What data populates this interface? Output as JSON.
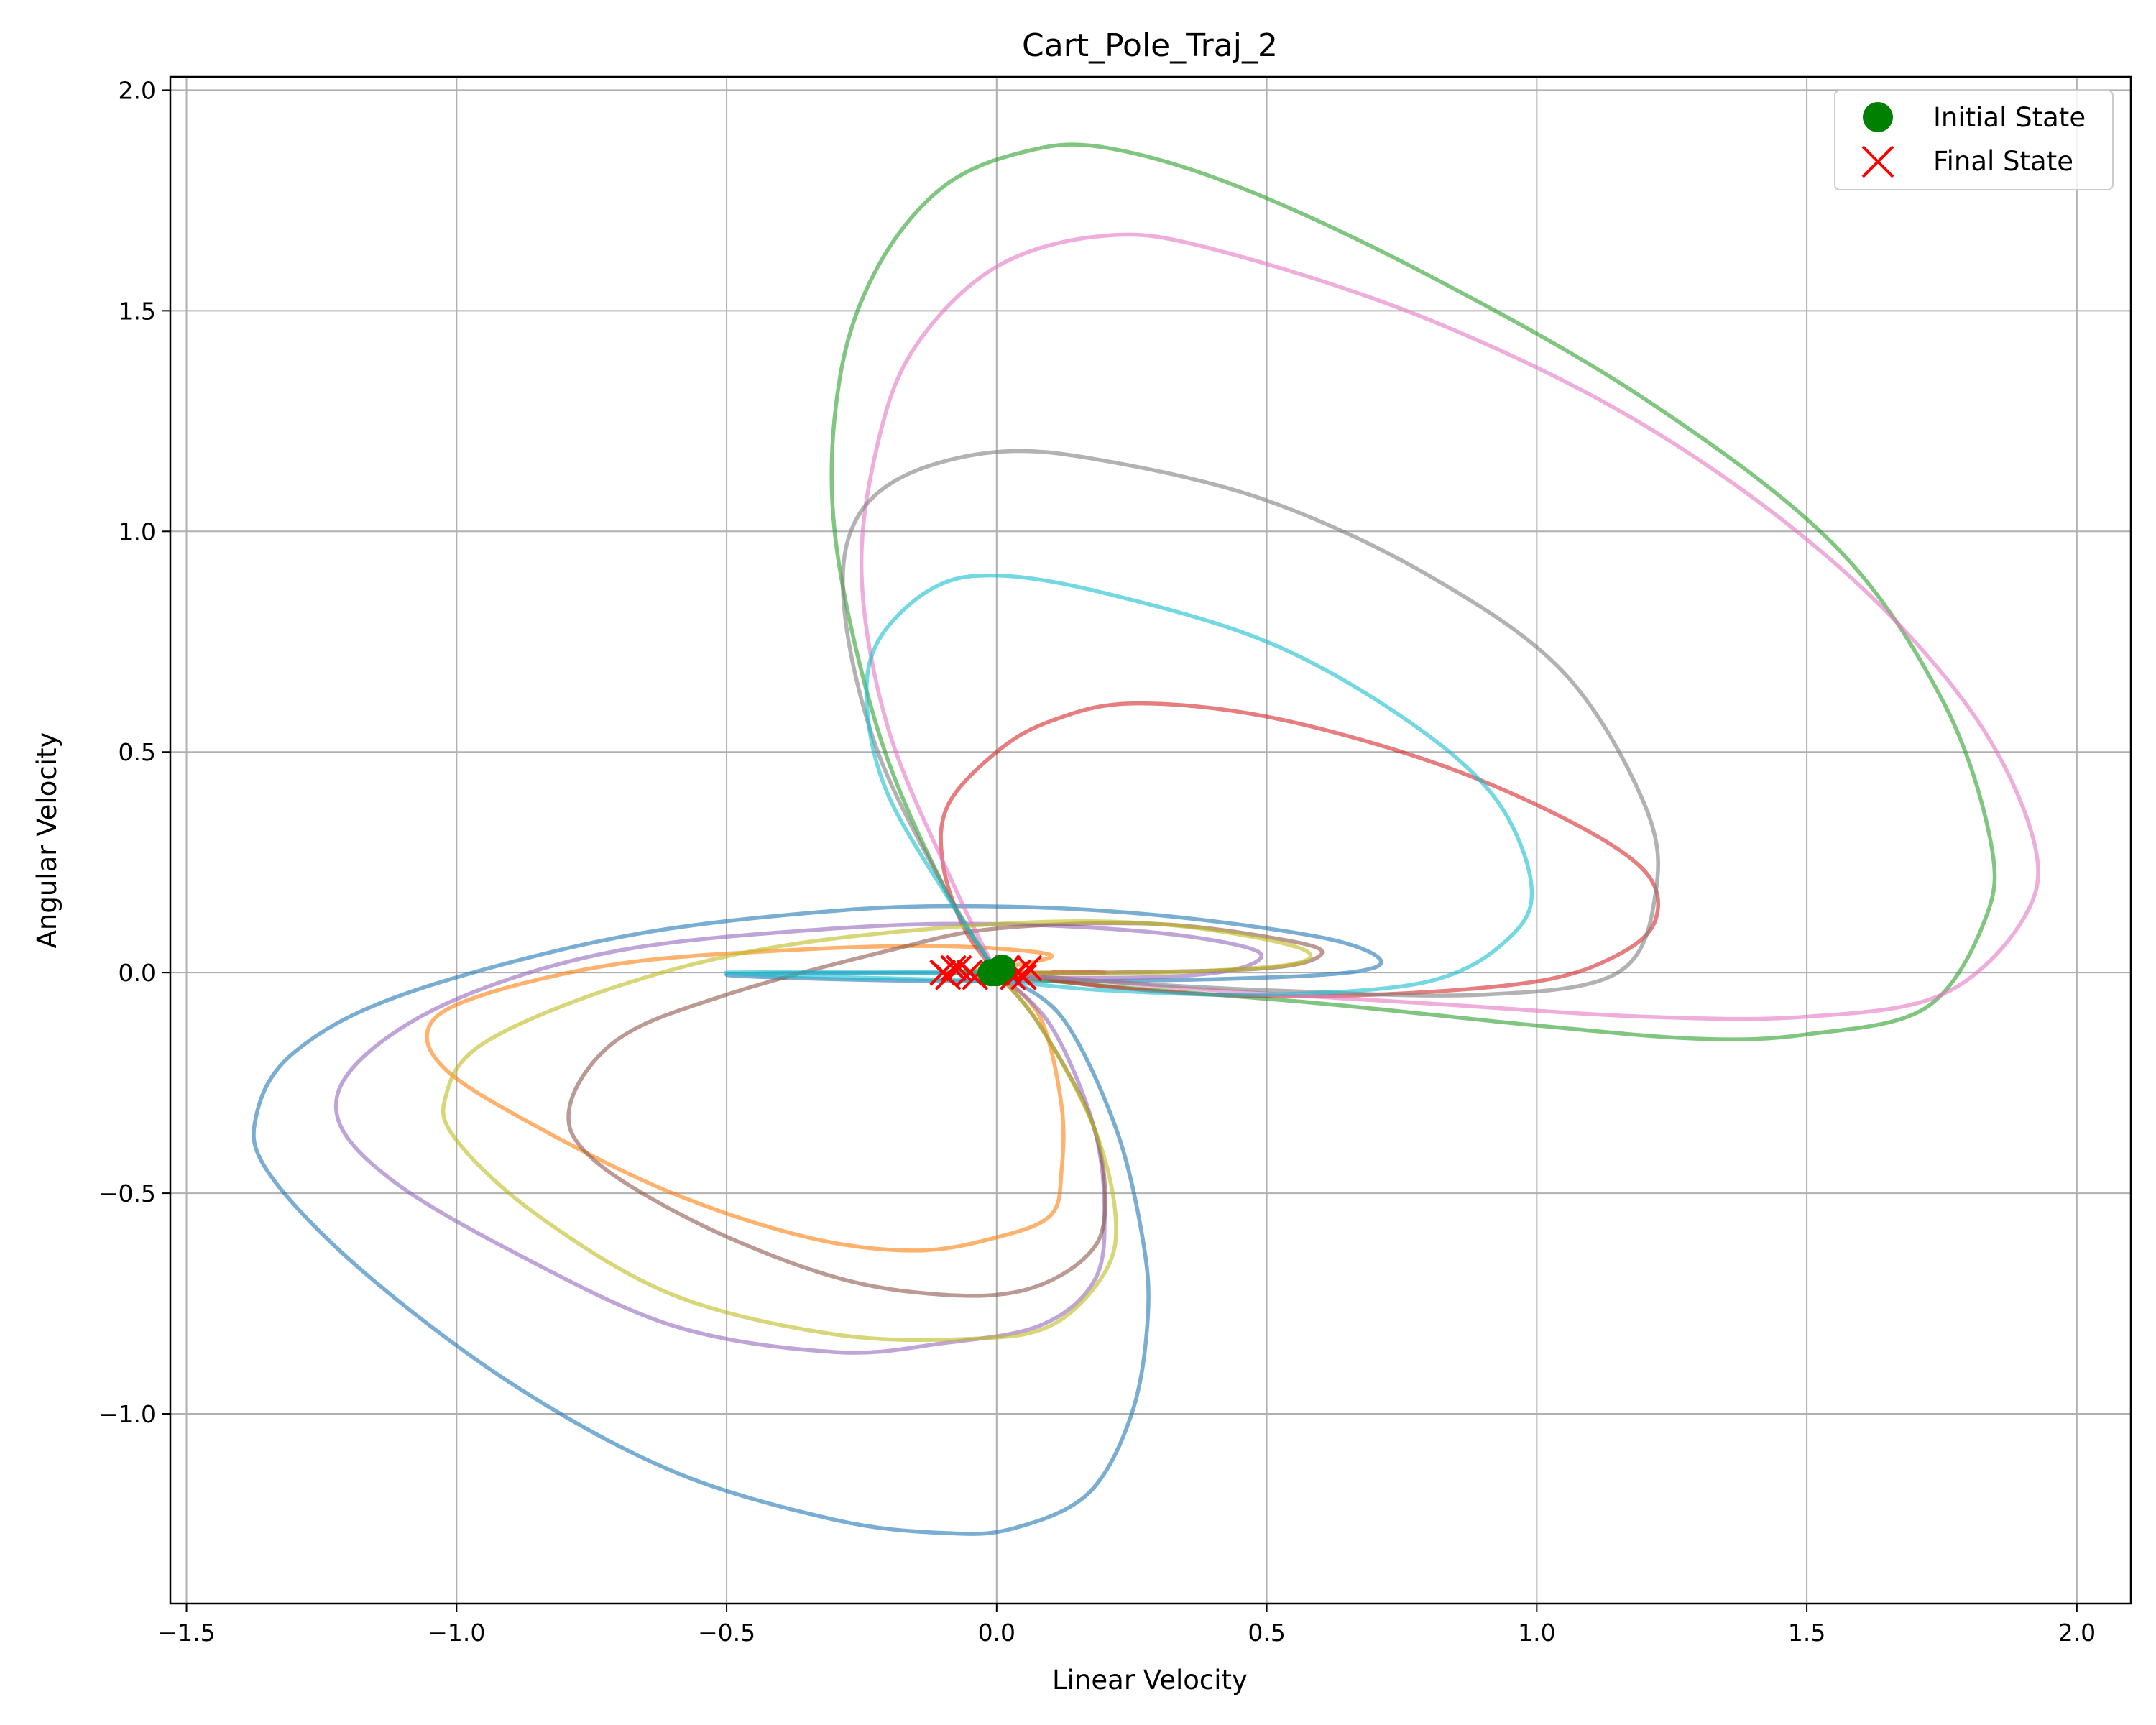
{
  "chart_data": {
    "type": "line",
    "title": "Cart_Pole_Traj_2",
    "xlabel": "Linear Velocity",
    "ylabel": "Angular Velocity",
    "xlim": [
      -1.53,
      2.1
    ],
    "ylim": [
      -1.43,
      2.03
    ],
    "x_ticks": [
      -1.5,
      -1.0,
      -0.5,
      0.0,
      0.5,
      1.0,
      1.5,
      2.0
    ],
    "y_ticks": [
      -1.0,
      -0.5,
      0.0,
      0.5,
      1.0,
      1.5,
      2.0
    ],
    "x_tick_labels": [
      "−1.5",
      "−1.0",
      "−0.5",
      "0.0",
      "0.5",
      "1.0",
      "1.5",
      "2.0"
    ],
    "y_tick_labels": [
      "−1.0",
      "−0.5",
      "0.0",
      "0.5",
      "1.0",
      "1.5",
      "2.0"
    ],
    "grid": true,
    "legend_position": "top-right",
    "legend": [
      {
        "label": "Initial State",
        "marker": "circle",
        "color": "#008000"
      },
      {
        "label": "Final State",
        "marker": "x",
        "color": "#ff0000"
      }
    ],
    "series": [
      {
        "color": "#1f77b4",
        "points": [
          [
            0.0,
            0.0
          ],
          [
            0.12,
            -0.1
          ],
          [
            0.22,
            -0.35
          ],
          [
            0.27,
            -0.6
          ],
          [
            0.28,
            -0.78
          ],
          [
            0.25,
            -1.0
          ],
          [
            0.17,
            -1.18
          ],
          [
            0.03,
            -1.26
          ],
          [
            -0.1,
            -1.27
          ],
          [
            -0.3,
            -1.24
          ],
          [
            -0.6,
            -1.13
          ],
          [
            -0.9,
            -0.93
          ],
          [
            -1.18,
            -0.67
          ],
          [
            -1.35,
            -0.45
          ],
          [
            -1.37,
            -0.32
          ],
          [
            -1.3,
            -0.18
          ],
          [
            -1.1,
            -0.05
          ],
          [
            -0.7,
            0.08
          ],
          [
            -0.3,
            0.14
          ],
          [
            0.0,
            0.15
          ],
          [
            0.3,
            0.13
          ],
          [
            0.6,
            0.08
          ],
          [
            0.71,
            0.03
          ],
          [
            0.65,
            0.0
          ],
          [
            0.4,
            -0.015
          ],
          [
            0.0,
            -0.02
          ],
          [
            -0.3,
            -0.015
          ],
          [
            -0.5,
            -0.005
          ],
          [
            -0.3,
            0.0
          ],
          [
            0.0,
            0.0
          ]
        ]
      },
      {
        "color": "#ff7f0e",
        "points": [
          [
            0.0,
            0.0
          ],
          [
            0.08,
            -0.1
          ],
          [
            0.12,
            -0.3
          ],
          [
            0.12,
            -0.45
          ],
          [
            0.1,
            -0.55
          ],
          [
            0.0,
            -0.6
          ],
          [
            -0.15,
            -0.63
          ],
          [
            -0.35,
            -0.6
          ],
          [
            -0.6,
            -0.5
          ],
          [
            -0.85,
            -0.35
          ],
          [
            -1.02,
            -0.22
          ],
          [
            -1.05,
            -0.12
          ],
          [
            -0.95,
            -0.05
          ],
          [
            -0.7,
            0.02
          ],
          [
            -0.4,
            0.05
          ],
          [
            -0.1,
            0.06
          ],
          [
            0.1,
            0.04
          ],
          [
            0.0,
            0.01
          ],
          [
            -0.1,
            0.0
          ],
          [
            -0.05,
            0.0
          ]
        ]
      },
      {
        "color": "#2ca02c",
        "points": [
          [
            0.0,
            0.0
          ],
          [
            -0.1,
            0.2
          ],
          [
            -0.22,
            0.55
          ],
          [
            -0.3,
            1.0
          ],
          [
            -0.29,
            1.35
          ],
          [
            -0.22,
            1.6
          ],
          [
            -0.1,
            1.78
          ],
          [
            0.05,
            1.86
          ],
          [
            0.2,
            1.87
          ],
          [
            0.45,
            1.78
          ],
          [
            0.8,
            1.58
          ],
          [
            1.2,
            1.3
          ],
          [
            1.55,
            0.97
          ],
          [
            1.75,
            0.62
          ],
          [
            1.84,
            0.3
          ],
          [
            1.83,
            0.12
          ],
          [
            1.72,
            -0.08
          ],
          [
            1.5,
            -0.14
          ],
          [
            1.3,
            -0.15
          ],
          [
            1.0,
            -0.12
          ],
          [
            0.6,
            -0.07
          ],
          [
            0.2,
            -0.03
          ],
          [
            -0.05,
            0.0
          ],
          [
            0.0,
            0.0
          ]
        ]
      },
      {
        "color": "#d62728",
        "points": [
          [
            0.0,
            0.0
          ],
          [
            -0.06,
            0.1
          ],
          [
            -0.1,
            0.25
          ],
          [
            -0.09,
            0.38
          ],
          [
            0.0,
            0.5
          ],
          [
            0.1,
            0.57
          ],
          [
            0.25,
            0.61
          ],
          [
            0.5,
            0.58
          ],
          [
            0.8,
            0.48
          ],
          [
            1.05,
            0.35
          ],
          [
            1.2,
            0.23
          ],
          [
            1.22,
            0.12
          ],
          [
            1.15,
            0.04
          ],
          [
            1.0,
            -0.02
          ],
          [
            0.7,
            -0.05
          ],
          [
            0.4,
            -0.05
          ],
          [
            0.12,
            -0.02
          ],
          [
            0.1,
            0.0
          ],
          [
            0.2,
            0.0
          ],
          [
            0.05,
            0.0
          ]
        ]
      },
      {
        "color": "#9467bd",
        "points": [
          [
            0.0,
            0.0
          ],
          [
            0.1,
            -0.12
          ],
          [
            0.18,
            -0.35
          ],
          [
            0.2,
            -0.55
          ],
          [
            0.18,
            -0.7
          ],
          [
            0.08,
            -0.8
          ],
          [
            -0.1,
            -0.84
          ],
          [
            -0.3,
            -0.86
          ],
          [
            -0.6,
            -0.8
          ],
          [
            -0.9,
            -0.63
          ],
          [
            -1.12,
            -0.47
          ],
          [
            -1.22,
            -0.33
          ],
          [
            -1.18,
            -0.2
          ],
          [
            -1.0,
            -0.06
          ],
          [
            -0.7,
            0.05
          ],
          [
            -0.3,
            0.1
          ],
          [
            0.0,
            0.11
          ],
          [
            0.3,
            0.09
          ],
          [
            0.48,
            0.05
          ],
          [
            0.45,
            0.01
          ],
          [
            0.3,
            -0.01
          ],
          [
            0.0,
            -0.01
          ],
          [
            -0.05,
            0.0
          ]
        ]
      },
      {
        "color": "#8c564b",
        "points": [
          [
            0.0,
            0.0
          ],
          [
            0.08,
            -0.12
          ],
          [
            0.18,
            -0.35
          ],
          [
            0.2,
            -0.55
          ],
          [
            0.16,
            -0.65
          ],
          [
            0.05,
            -0.72
          ],
          [
            -0.1,
            -0.73
          ],
          [
            -0.3,
            -0.69
          ],
          [
            -0.55,
            -0.57
          ],
          [
            -0.75,
            -0.42
          ],
          [
            -0.79,
            -0.3
          ],
          [
            -0.7,
            -0.15
          ],
          [
            -0.5,
            -0.05
          ],
          [
            -0.2,
            0.05
          ],
          [
            0.0,
            0.1
          ],
          [
            0.3,
            0.11
          ],
          [
            0.55,
            0.07
          ],
          [
            0.6,
            0.04
          ],
          [
            0.5,
            0.01
          ],
          [
            0.2,
            0.0
          ],
          [
            0.0,
            0.0
          ]
        ]
      },
      {
        "color": "#e377c2",
        "points": [
          [
            0.0,
            0.0
          ],
          [
            -0.08,
            0.2
          ],
          [
            -0.2,
            0.55
          ],
          [
            -0.25,
            0.9
          ],
          [
            -0.22,
            1.2
          ],
          [
            -0.15,
            1.42
          ],
          [
            0.0,
            1.6
          ],
          [
            0.2,
            1.67
          ],
          [
            0.4,
            1.64
          ],
          [
            0.8,
            1.48
          ],
          [
            1.2,
            1.24
          ],
          [
            1.55,
            0.93
          ],
          [
            1.8,
            0.6
          ],
          [
            1.92,
            0.3
          ],
          [
            1.9,
            0.12
          ],
          [
            1.75,
            -0.05
          ],
          [
            1.5,
            -0.1
          ],
          [
            1.2,
            -0.1
          ],
          [
            0.8,
            -0.07
          ],
          [
            0.4,
            -0.04
          ],
          [
            0.1,
            -0.01
          ],
          [
            0.0,
            0.0
          ]
        ]
      },
      {
        "color": "#7f7f7f",
        "points": [
          [
            0.0,
            0.0
          ],
          [
            -0.1,
            0.2
          ],
          [
            -0.22,
            0.5
          ],
          [
            -0.28,
            0.8
          ],
          [
            -0.27,
            1.0
          ],
          [
            -0.18,
            1.12
          ],
          [
            0.0,
            1.18
          ],
          [
            0.2,
            1.16
          ],
          [
            0.5,
            1.07
          ],
          [
            0.8,
            0.9
          ],
          [
            1.05,
            0.68
          ],
          [
            1.2,
            0.38
          ],
          [
            1.22,
            0.18
          ],
          [
            1.15,
            0.0
          ],
          [
            0.9,
            -0.05
          ],
          [
            0.5,
            -0.04
          ],
          [
            0.2,
            -0.02
          ],
          [
            0.0,
            0.0
          ]
        ]
      },
      {
        "color": "#bcbd22",
        "points": [
          [
            0.0,
            0.0
          ],
          [
            0.08,
            -0.12
          ],
          [
            0.18,
            -0.35
          ],
          [
            0.22,
            -0.55
          ],
          [
            0.2,
            -0.68
          ],
          [
            0.1,
            -0.8
          ],
          [
            -0.05,
            -0.83
          ],
          [
            -0.3,
            -0.82
          ],
          [
            -0.6,
            -0.73
          ],
          [
            -0.85,
            -0.55
          ],
          [
            -1.0,
            -0.38
          ],
          [
            -1.02,
            -0.28
          ],
          [
            -0.95,
            -0.16
          ],
          [
            -0.7,
            -0.03
          ],
          [
            -0.4,
            0.06
          ],
          [
            0.0,
            0.11
          ],
          [
            0.3,
            0.11
          ],
          [
            0.55,
            0.06
          ],
          [
            0.55,
            0.02
          ],
          [
            0.3,
            0.0
          ],
          [
            0.0,
            0.0
          ]
        ]
      },
      {
        "color": "#17becf",
        "points": [
          [
            0.0,
            0.0
          ],
          [
            -0.08,
            0.15
          ],
          [
            -0.2,
            0.4
          ],
          [
            -0.24,
            0.6
          ],
          [
            -0.22,
            0.75
          ],
          [
            -0.12,
            0.87
          ],
          [
            0.0,
            0.9
          ],
          [
            0.2,
            0.86
          ],
          [
            0.5,
            0.75
          ],
          [
            0.75,
            0.58
          ],
          [
            0.92,
            0.4
          ],
          [
            0.99,
            0.2
          ],
          [
            0.95,
            0.08
          ],
          [
            0.8,
            -0.02
          ],
          [
            0.5,
            -0.05
          ],
          [
            0.2,
            -0.04
          ],
          [
            0.0,
            -0.02
          ],
          [
            -0.3,
            -0.01
          ],
          [
            -0.5,
            0.0
          ],
          [
            -0.2,
            0.0
          ],
          [
            0.0,
            0.0
          ]
        ]
      }
    ],
    "initial_states": [
      [
        0.0,
        0.0
      ],
      [
        -0.01,
        0.0
      ],
      [
        0.01,
        0.01
      ]
    ],
    "final_states": [
      [
        -0.1,
        0.0
      ],
      [
        -0.09,
        -0.01
      ],
      [
        -0.07,
        0.01
      ],
      [
        -0.05,
        0.0
      ],
      [
        -0.04,
        -0.01
      ],
      [
        0.0,
        0.0
      ],
      [
        0.02,
        0.01
      ],
      [
        0.04,
        0.0
      ],
      [
        0.05,
        -0.01
      ],
      [
        0.06,
        0.01
      ],
      [
        -0.08,
        0.01
      ],
      [
        0.03,
        -0.01
      ]
    ]
  }
}
